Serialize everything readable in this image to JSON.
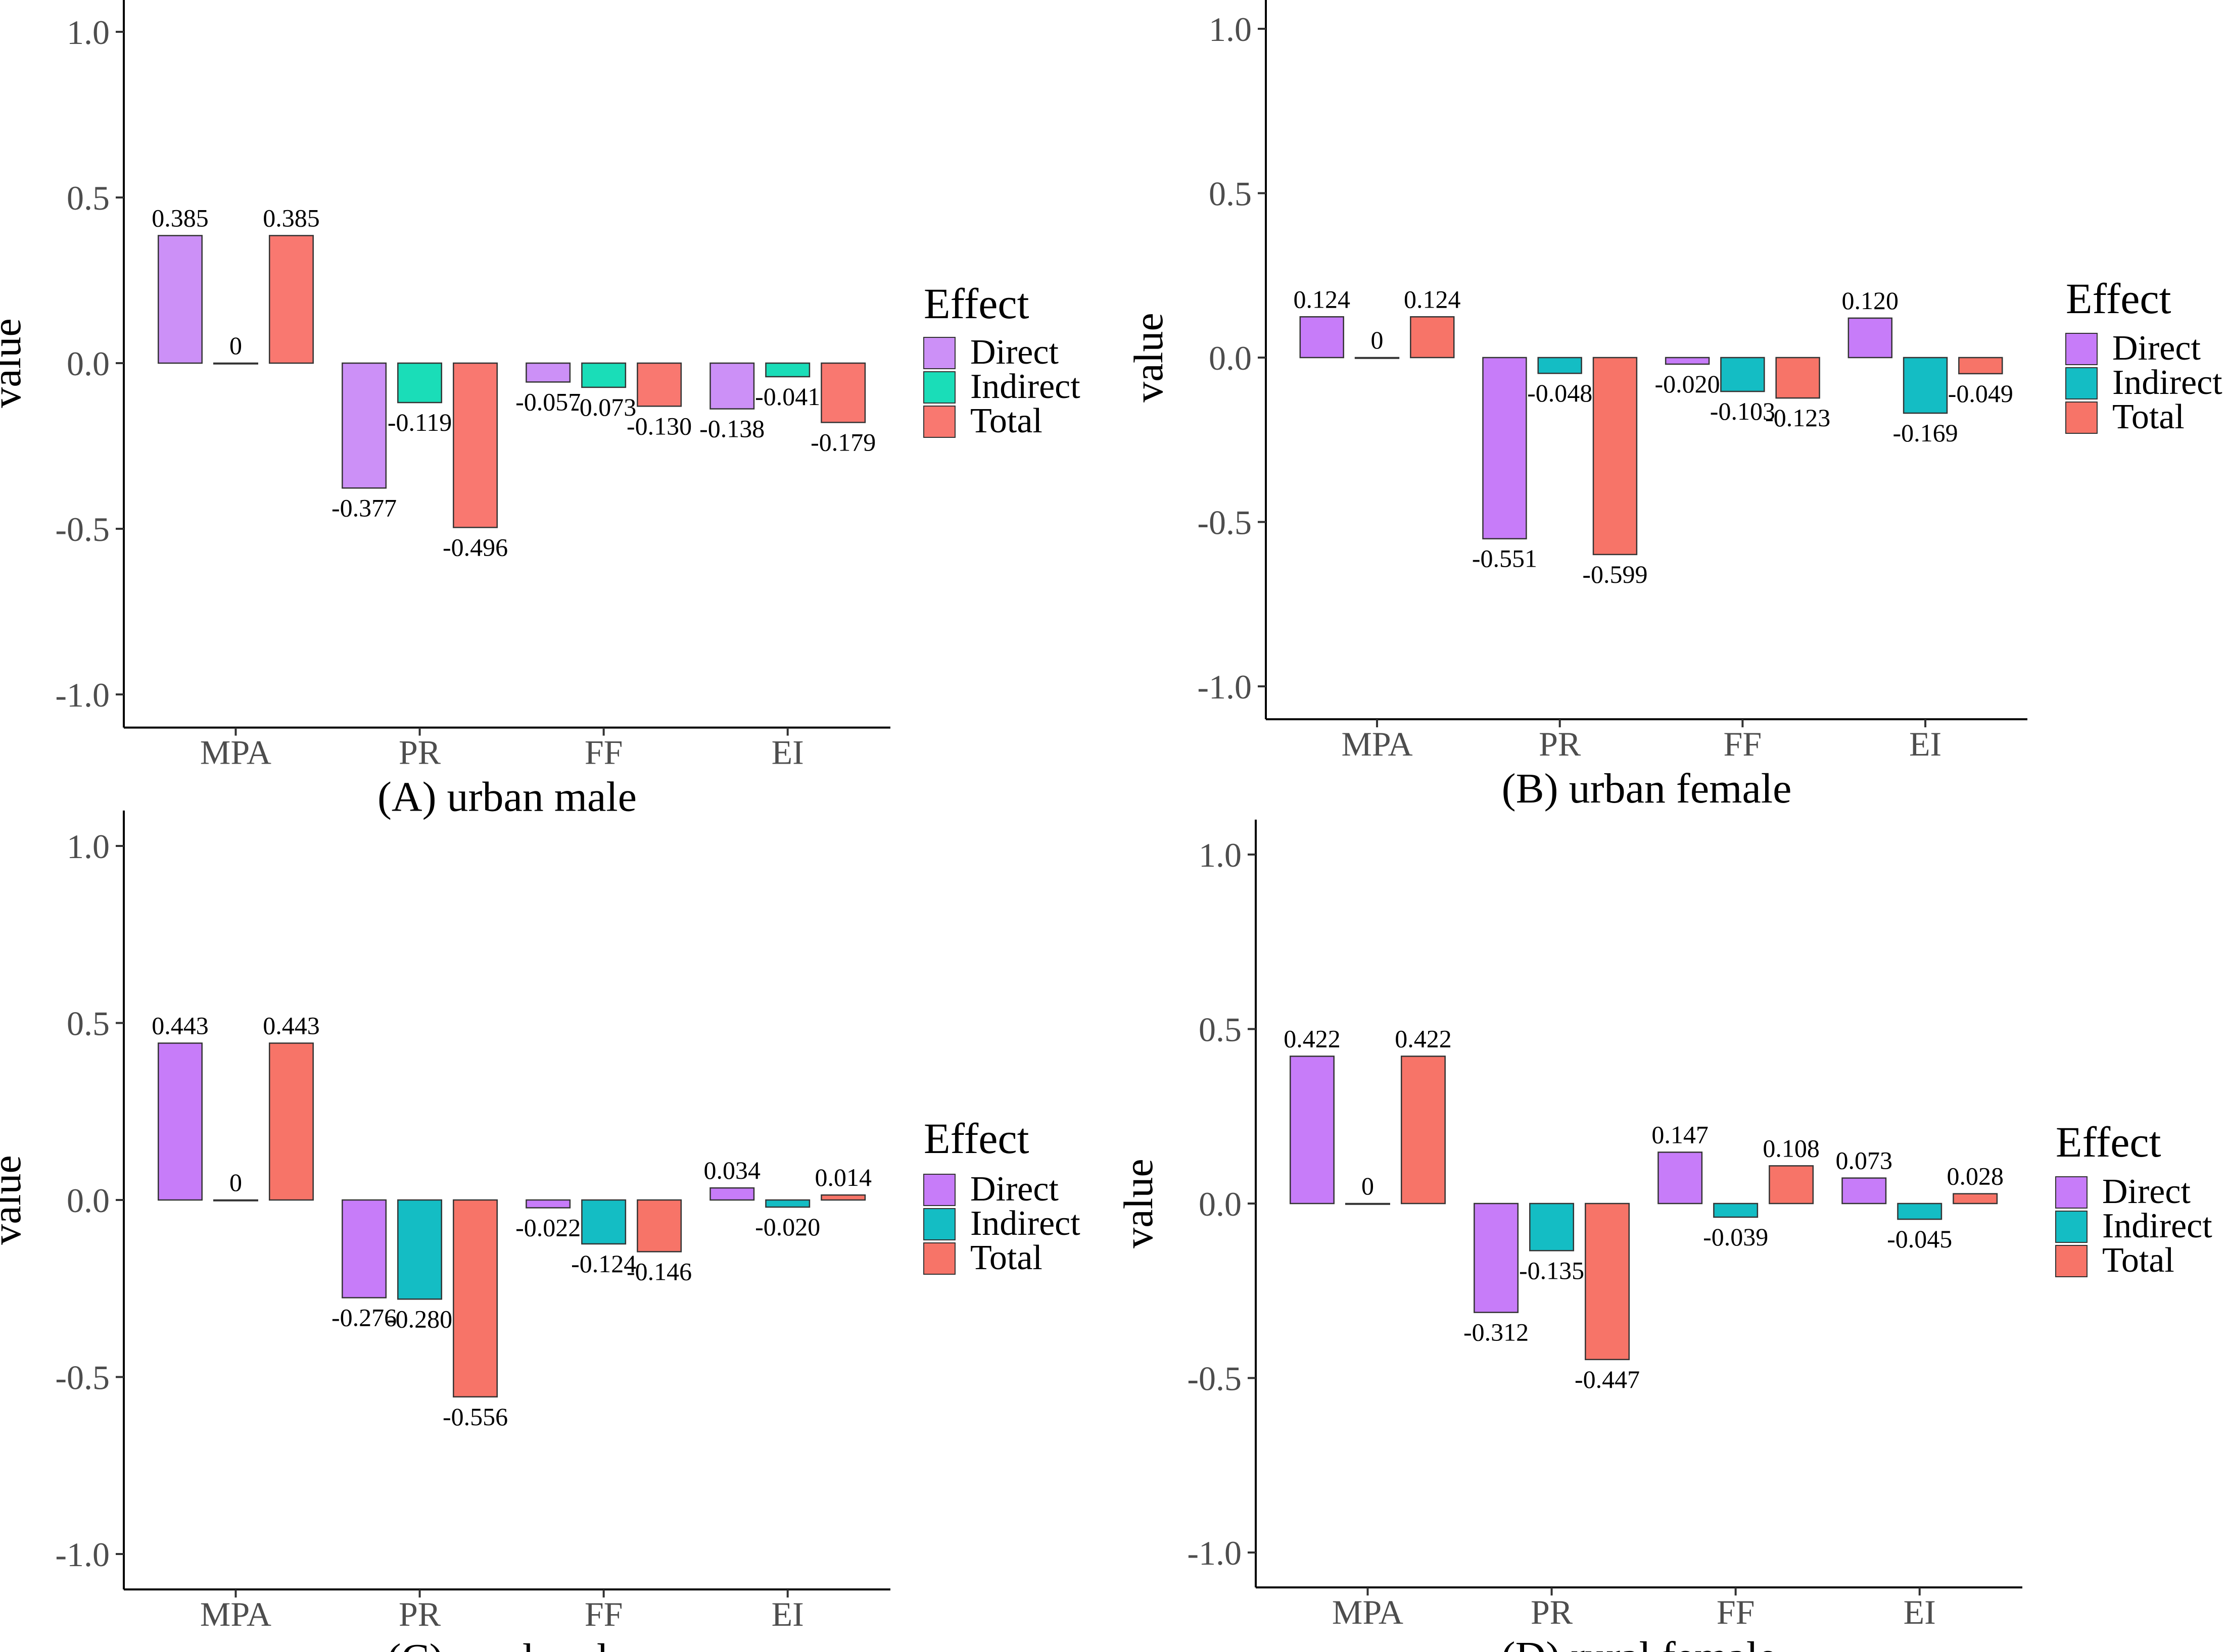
{
  "y_axis_label": "value",
  "legend_title": "Effect",
  "series_names": [
    "Direct",
    "Indirect",
    "Total"
  ],
  "y_ticks": [
    "1.0",
    "0.5",
    "0.0",
    "-0.5",
    "-1.0"
  ],
  "chart_data": [
    {
      "type": "bar",
      "title": "(A) urban male",
      "categories": [
        "MPA",
        "PR",
        "FF",
        "EI"
      ],
      "ylabel": "value",
      "ylim": [
        -1.1,
        1.1
      ],
      "colors": [
        "#CC90F7",
        "#1ADDB8",
        "#F97870"
      ],
      "series": [
        {
          "name": "Direct",
          "values": [
            0.385,
            -0.377,
            -0.057,
            -0.138
          ],
          "labels": [
            "0.385",
            "-0.377",
            "-0.057",
            "-0.138"
          ]
        },
        {
          "name": "Indirect",
          "values": [
            0,
            -0.119,
            -0.073,
            -0.041
          ],
          "labels": [
            "0",
            "-0.119",
            "-0.073",
            "-0.041"
          ]
        },
        {
          "name": "Total",
          "values": [
            0.385,
            -0.496,
            -0.13,
            -0.179
          ],
          "labels": [
            "0.385",
            "-0.496",
            "-0.130",
            "-0.179"
          ]
        }
      ]
    },
    {
      "type": "bar",
      "title": "(B) urban female",
      "categories": [
        "MPA",
        "PR",
        "FF",
        "EI"
      ],
      "ylabel": "value",
      "ylim": [
        -1.1,
        1.1
      ],
      "colors": [
        "#C77CF9",
        "#14BDC4",
        "#F77468"
      ],
      "series": [
        {
          "name": "Direct",
          "values": [
            0.124,
            -0.551,
            -0.02,
            0.12
          ],
          "labels": [
            "0.124",
            "-0.551",
            "-0.020",
            "0.120"
          ]
        },
        {
          "name": "Indirect",
          "values": [
            0,
            -0.048,
            -0.103,
            -0.169
          ],
          "labels": [
            "0",
            "-0.048",
            "-0.103",
            "-0.169"
          ]
        },
        {
          "name": "Total",
          "values": [
            0.124,
            -0.599,
            -0.123,
            -0.049
          ],
          "labels": [
            "0.124",
            "-0.599",
            "-0.123",
            "-0.049"
          ]
        }
      ]
    },
    {
      "type": "bar",
      "title": "(C) rural male",
      "categories": [
        "MPA",
        "PR",
        "FF",
        "EI"
      ],
      "ylabel": "value",
      "ylim": [
        -1.1,
        1.1
      ],
      "colors": [
        "#C77CF9",
        "#14BDC4",
        "#F77468"
      ],
      "series": [
        {
          "name": "Direct",
          "values": [
            0.443,
            -0.276,
            -0.022,
            0.034
          ],
          "labels": [
            "0.443",
            "-0.276",
            "-0.022",
            "0.034"
          ]
        },
        {
          "name": "Indirect",
          "values": [
            0,
            -0.28,
            -0.124,
            -0.02
          ],
          "labels": [
            "0",
            "-0.280",
            "-0.124",
            "-0.020"
          ]
        },
        {
          "name": "Total",
          "values": [
            0.443,
            -0.556,
            -0.146,
            0.014
          ],
          "labels": [
            "0.443",
            "-0.556",
            "-0.146",
            "0.014"
          ]
        }
      ]
    },
    {
      "type": "bar",
      "title": "(D) rural female",
      "categories": [
        "MPA",
        "PR",
        "FF",
        "EI"
      ],
      "ylabel": "value",
      "ylim": [
        -1.1,
        1.1
      ],
      "colors": [
        "#C77CF9",
        "#14BDC4",
        "#F77468"
      ],
      "series": [
        {
          "name": "Direct",
          "values": [
            0.422,
            -0.312,
            0.147,
            0.073
          ],
          "labels": [
            "0.422",
            "-0.312",
            "0.147",
            "0.073"
          ]
        },
        {
          "name": "Indirect",
          "values": [
            0,
            -0.135,
            -0.039,
            -0.045
          ],
          "labels": [
            "0",
            "-0.135",
            "-0.039",
            "-0.045"
          ]
        },
        {
          "name": "Total",
          "values": [
            0.422,
            -0.447,
            0.108,
            0.028
          ],
          "labels": [
            "0.422",
            "-0.447",
            "0.108",
            "0.028"
          ]
        }
      ]
    }
  ]
}
